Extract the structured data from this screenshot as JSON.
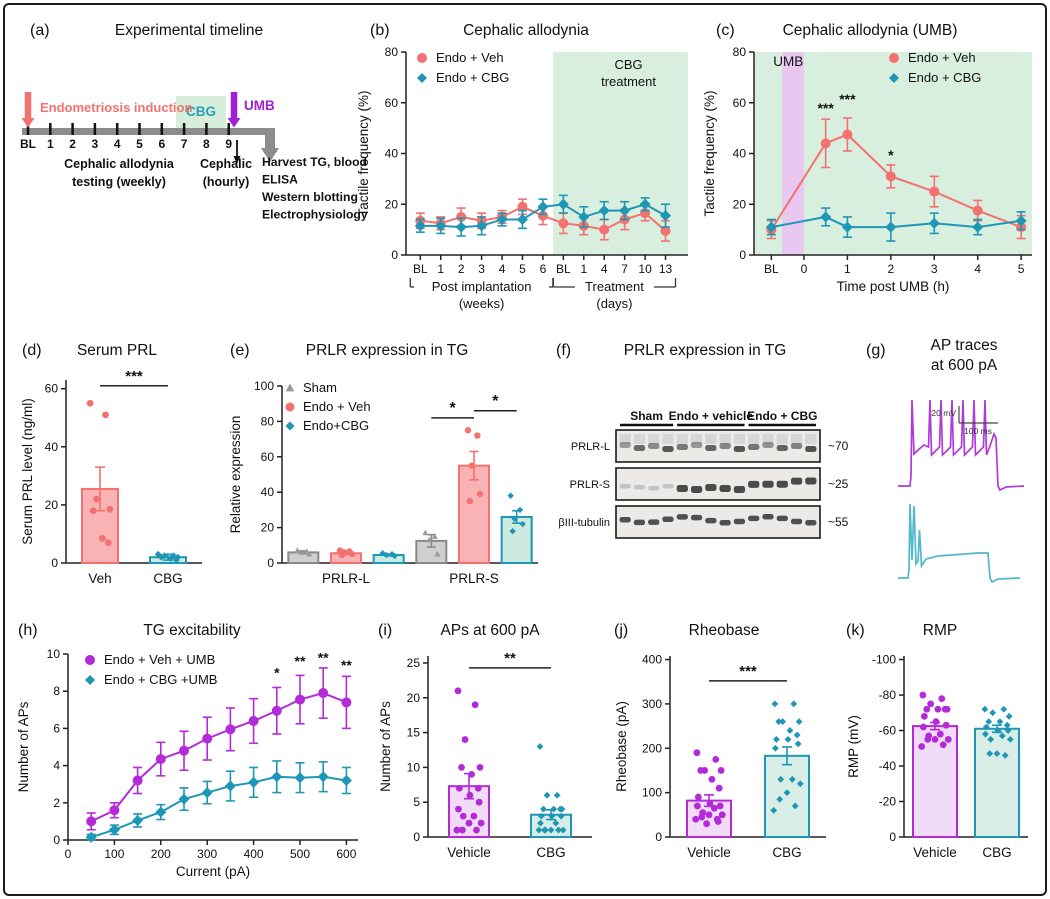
{
  "figure": {
    "border_color": "#1c1c1c",
    "background": "#ffffff"
  },
  "colors": {
    "salmon": "#F3716F",
    "teal": "#1E96B5",
    "magenta": "#B32BD9",
    "salmon_fill": "#F9B3B5",
    "teal_fill_light": "#CDEAE0",
    "magenta_fill": "#F2DBF8",
    "teal_fill": "#D8EDE5",
    "gray_marker": "#9A9A9A",
    "gray_fill": "#CFCFCF",
    "gray_stroke": "#8A8A8A",
    "green_shade": "#D8EEDE",
    "purple_band": "#E9C7F1"
  },
  "panels": {
    "a": {
      "label": "(a)",
      "title": "Experimental timeline",
      "timeline": {
        "induction": "Endometriosis induction",
        "cbg": "CBG",
        "umb": "UMB",
        "ticks": [
          "BL",
          "1",
          "2",
          "3",
          "4",
          "5",
          "6",
          "7",
          "8",
          "9"
        ],
        "weekly_note": [
          "Cephalic allodynia",
          "testing (weekly)"
        ],
        "cephalic_note": [
          "Cephalic",
          "(hourly)"
        ],
        "harvest_note": [
          "Harvest TG, blood",
          "ELISA",
          "Western blotting",
          "Electrophysiology"
        ],
        "colors": {
          "induction": "#F4726E",
          "cbg_box": "#D8EEDD",
          "cbg_text": "#2AA0B5",
          "umb": "#A21FD6",
          "bar": "#8C8C8C"
        }
      }
    },
    "b": {
      "label": "(b)",
      "title": "Cephalic allodynia"
    },
    "c": {
      "label": "(c)",
      "title": "Cephalic allodynia (UMB)"
    },
    "d": {
      "label": "(d)",
      "title": "Serum PRL"
    },
    "e": {
      "label": "(e)",
      "title": "PRLR expression in TG"
    },
    "f": {
      "label": "(f)",
      "title": "PRLR expression in TG",
      "blot": {
        "groups": [
          "Sham",
          "Endo + vehicle",
          "Endo + CBG"
        ],
        "rows": [
          {
            "name": "PRLR-L",
            "mw": "~70"
          },
          {
            "name": "PRLR-S",
            "mw": "~25"
          },
          {
            "name": "βIII-tubulin",
            "mw": "~55"
          }
        ]
      }
    },
    "g": {
      "label": "(g)",
      "title": "AP traces\nat 600 pA",
      "traces": {
        "scale_v": "20 mV",
        "scale_h": "100 ms",
        "colors": [
          "#AF3BD9",
          "#4FB9CB"
        ]
      }
    },
    "h": {
      "label": "(h)",
      "title": "TG excitability"
    },
    "i": {
      "label": "(i)",
      "title": "APs at 600 pA"
    },
    "j": {
      "label": "(j)",
      "title": "Rheobase"
    },
    "k": {
      "label": "(k)",
      "title": "RMP"
    }
  },
  "chart_data": [
    {
      "panel": "b",
      "type": "line",
      "title": "Cephalic allodynia",
      "ylabel": "Tactile frequency (%)",
      "ylim": [
        0,
        80
      ],
      "yticks": [
        0,
        20,
        40,
        60,
        80
      ],
      "x_categories": [
        "BL",
        "1",
        "2",
        "3",
        "4",
        "5",
        "6",
        "BL",
        "1",
        "4",
        "7",
        "10",
        "13"
      ],
      "shade": {
        "from": 6.5,
        "color": "#D8EEDE",
        "label": "CBG\ntreatment"
      },
      "brackets": [
        {
          "from": 0,
          "to": 6,
          "line1": "Post implantation",
          "line2": "(weeks)"
        },
        {
          "from": 7,
          "to": 12,
          "line1": "Treatment",
          "line2": "(days)"
        }
      ],
      "series": [
        {
          "name": "Endo + Veh",
          "marker": "circle",
          "color": "#F3716F",
          "values": [
            13.5,
            12.5,
            15,
            13.5,
            15,
            19,
            15.5,
            12.5,
            11.5,
            10,
            14,
            16.5,
            9.5
          ],
          "errors": [
            3,
            2.5,
            3.5,
            3,
            2.5,
            3,
            3.5,
            4,
            3.5,
            4,
            4,
            3,
            4
          ]
        },
        {
          "name": "Endo + CBG",
          "marker": "diamond",
          "color": "#1E96B5",
          "values": [
            11.5,
            11.5,
            11,
            11.5,
            14,
            14,
            19,
            20,
            15,
            17.5,
            17.5,
            20,
            15.5
          ],
          "errors": [
            2.5,
            3,
            3.5,
            3.5,
            2.5,
            3.5,
            3,
            3.5,
            4,
            3.5,
            3.5,
            2.5,
            4.5
          ]
        }
      ]
    },
    {
      "panel": "c",
      "type": "line",
      "title": "Cephalic allodynia (UMB)",
      "xlabel": "Time post UMB (h)",
      "ylabel": "Tactile frequency (%)",
      "ylim": [
        0,
        80
      ],
      "yticks": [
        0,
        20,
        40,
        60,
        80
      ],
      "xlim": [
        -1.15,
        5.25
      ],
      "x": [
        -0.75,
        0.5,
        1,
        2,
        3,
        4,
        5
      ],
      "xticks": [
        {
          "v": -0.75,
          "label": "BL"
        },
        {
          "v": 0,
          "label": "0"
        },
        {
          "v": 1,
          "label": "1"
        },
        {
          "v": 2,
          "label": "2"
        },
        {
          "v": 3,
          "label": "3"
        },
        {
          "v": 4,
          "label": "4"
        },
        {
          "v": 5,
          "label": "5"
        }
      ],
      "bg": "#D8EEDE",
      "band": {
        "x1": -0.5,
        "x2": 0,
        "color": "#E9C7F1",
        "label": "UMB"
      },
      "stars": [
        {
          "x": 0.5,
          "y": 56,
          "t": "***"
        },
        {
          "x": 1,
          "y": 59.5,
          "t": "***"
        },
        {
          "x": 2,
          "y": 37.5,
          "t": "*"
        }
      ],
      "series": [
        {
          "name": "Endo + Veh",
          "marker": "circle",
          "color": "#F3716F",
          "values": [
            10,
            44,
            47.5,
            31,
            25,
            17.5,
            11
          ],
          "errors": [
            3.5,
            9.5,
            6.5,
            4.5,
            6,
            4,
            4.5
          ]
        },
        {
          "name": "Endo + CBG",
          "marker": "diamond",
          "color": "#1E96B5",
          "values": [
            11,
            15,
            11,
            11,
            12.5,
            11,
            13.5
          ],
          "errors": [
            3,
            3.5,
            4,
            5.5,
            4,
            3,
            3.5
          ]
        }
      ]
    },
    {
      "panel": "d",
      "type": "bar",
      "title": "Serum PRL",
      "ylabel": "Serum PRL level (ng/ml)",
      "ylim": [
        0,
        63
      ],
      "yticks": [
        0,
        20,
        40,
        60
      ],
      "sig": {
        "i1": 0,
        "i2": 1,
        "y": 61,
        "label": "***"
      },
      "bars": [
        {
          "label": "Veh",
          "value": 25.5,
          "err": 7.5,
          "fill": "#F9B3B5",
          "stroke": "#F3716F",
          "marker": "circle",
          "pts": [
            55,
            51,
            22,
            18.5,
            18,
            8.5,
            7
          ]
        },
        {
          "label": "CBG",
          "value": 2,
          "err": 1,
          "fill": "#CDEAE0",
          "stroke": "#1E96B5",
          "marker": "diamond",
          "pts": [
            3,
            2.5,
            2.5,
            2,
            2,
            1.5,
            1
          ]
        }
      ]
    },
    {
      "panel": "e",
      "type": "groupbar",
      "title": "PRLR expression in TG",
      "ylabel": "Relative expression",
      "ylim": [
        0,
        100
      ],
      "yticks": [
        0,
        20,
        40,
        60,
        80,
        100
      ],
      "series": [
        {
          "name": "Sham",
          "marker": "triangle",
          "color": "#9A9A9A",
          "fill": "#CFCFCF",
          "stroke": "#8A8A8A"
        },
        {
          "name": "Endo + Veh",
          "marker": "circle",
          "color": "#F3716F",
          "fill": "#F9B3B5",
          "stroke": "#F3716F"
        },
        {
          "name": "Endo+CBG",
          "marker": "diamond",
          "color": "#1E96B5",
          "fill": "#CDEAE0",
          "stroke": "#1E96B5"
        }
      ],
      "groups": [
        {
          "label": "PRLR-L",
          "values": [
            6,
            5.5,
            4.5
          ],
          "errors": [
            0.8,
            0.8,
            0.5
          ],
          "pts": [
            [
              7,
              6.5,
              6,
              5
            ],
            [
              7,
              6.5,
              6,
              5,
              4.5
            ],
            [
              5.5,
              5,
              4.5,
              4
            ]
          ]
        },
        {
          "label": "PRLR-S",
          "values": [
            12.5,
            55,
            26
          ],
          "errors": [
            3.5,
            8,
            3.5
          ],
          "pts": [
            [
              17,
              15,
              13,
              5
            ],
            [
              75,
              72,
              55,
              39,
              35
            ],
            [
              38,
              30,
              25,
              22,
              18
            ]
          ]
        }
      ],
      "sigs": [
        {
          "g": 1,
          "s1": 0,
          "s2": 1,
          "y": 82,
          "label": "*"
        },
        {
          "g": 1,
          "s1": 1,
          "s2": 2,
          "y": 86,
          "label": "*"
        }
      ]
    },
    {
      "panel": "h",
      "type": "line",
      "title": "TG excitability",
      "xlabel": "Current (pA)",
      "ylabel": "Number of APs",
      "ylim": [
        0,
        10
      ],
      "yticks": [
        0,
        2,
        4,
        6,
        8,
        10
      ],
      "xlim": [
        0,
        625
      ],
      "x": [
        50,
        100,
        150,
        200,
        250,
        300,
        350,
        400,
        450,
        500,
        550,
        600
      ],
      "xticks": [
        {
          "v": 0,
          "label": "0"
        },
        {
          "v": 100,
          "label": "100"
        },
        {
          "v": 200,
          "label": "200"
        },
        {
          "v": 300,
          "label": "300"
        },
        {
          "v": 400,
          "label": "400"
        },
        {
          "v": 500,
          "label": "500"
        },
        {
          "v": 600,
          "label": "600"
        }
      ],
      "stars": [
        {
          "x": 450,
          "y": 8.75,
          "t": "*"
        },
        {
          "x": 500,
          "y": 9.35,
          "t": "**"
        },
        {
          "x": 550,
          "y": 9.55,
          "t": "**"
        },
        {
          "x": 600,
          "y": 9.15,
          "t": "**"
        }
      ],
      "series": [
        {
          "name": "Endo + Veh + UMB",
          "marker": "circle",
          "color": "#B32BD9",
          "values": [
            1,
            1.6,
            3.2,
            4.35,
            4.8,
            5.45,
            5.95,
            6.4,
            6.95,
            7.55,
            7.9,
            7.4
          ],
          "errors": [
            0.45,
            0.4,
            0.7,
            0.9,
            1.05,
            1.15,
            1.15,
            1.2,
            1.25,
            1.3,
            1.35,
            1.4
          ]
        },
        {
          "name": "Endo + CBG +UMB",
          "marker": "diamond",
          "color": "#1E96B5",
          "values": [
            0.15,
            0.55,
            1.05,
            1.5,
            2.2,
            2.55,
            2.9,
            3.1,
            3.4,
            3.35,
            3.4,
            3.2
          ],
          "errors": [
            0.15,
            0.25,
            0.35,
            0.4,
            0.6,
            0.6,
            0.8,
            0.8,
            0.85,
            0.8,
            0.8,
            0.7
          ]
        }
      ]
    },
    {
      "panel": "i",
      "type": "bar",
      "title": "APs at 600 pA",
      "ylabel": "Number of APs",
      "ylim": [
        0,
        26
      ],
      "yticks": [
        0,
        5,
        10,
        15,
        20,
        25
      ],
      "sig": {
        "i1": 0,
        "i2": 1,
        "y": 24.3,
        "label": "**"
      },
      "bars": [
        {
          "label": "Vehicle",
          "value": 7.3,
          "err": 1.8,
          "fill": "#F2DBF8",
          "stroke": "#B32BD9",
          "marker": "circle",
          "pts": [
            21,
            19,
            14,
            10,
            10,
            9,
            7,
            7,
            6,
            5,
            4,
            3,
            3,
            2,
            2,
            1,
            1,
            1
          ]
        },
        {
          "label": "CBG",
          "value": 3.2,
          "err": 0.7,
          "fill": "#D8EDE5",
          "stroke": "#1E96B5",
          "marker": "diamond",
          "pts": [
            13,
            6,
            6,
            4,
            4,
            4,
            4,
            3,
            3,
            3,
            2,
            2,
            1,
            1,
            1,
            1,
            1,
            1
          ]
        }
      ]
    },
    {
      "panel": "j",
      "type": "bar",
      "title": "Rheobase",
      "ylabel": "Rheobase (pA)",
      "ylim": [
        0,
        408
      ],
      "yticks": [
        0,
        100,
        200,
        300,
        400
      ],
      "sig": {
        "i1": 0,
        "i2": 1,
        "y": 352,
        "label": "***"
      },
      "bars": [
        {
          "label": "Vehicle",
          "value": 82,
          "err": 13,
          "fill": "#F2DBF8",
          "stroke": "#B32BD9",
          "marker": "circle",
          "pts": [
            190,
            175,
            150,
            150,
            150,
            130,
            110,
            90,
            75,
            70,
            70,
            65,
            55,
            50,
            50,
            45,
            40,
            40,
            35,
            30
          ]
        },
        {
          "label": "CBG",
          "value": 183,
          "err": 20,
          "fill": "#D8EDE5",
          "stroke": "#1E96B5",
          "marker": "diamond",
          "pts": [
            300,
            300,
            260,
            260,
            260,
            240,
            230,
            220,
            220,
            210,
            200,
            130,
            130,
            120,
            100,
            85,
            70,
            60
          ]
        }
      ]
    },
    {
      "panel": "k",
      "type": "bar",
      "title": "RMP",
      "inverted": true,
      "ylabel": "RMP (mV)",
      "ylim": [
        0,
        -102
      ],
      "yticks": [
        -100,
        -80,
        -60,
        -40,
        -20,
        0
      ],
      "bars": [
        {
          "label": "Vehicle",
          "value": -62.5,
          "err": 2,
          "fill": "#F2DBF8",
          "stroke": "#B32BD9",
          "marker": "circle",
          "pts": [
            -80,
            -78,
            -75,
            -72,
            -72,
            -72,
            -72,
            -68,
            -65,
            -63,
            -62,
            -58,
            -57,
            -55,
            -55,
            -55,
            -52,
            -51
          ]
        },
        {
          "label": "CBG",
          "value": -61,
          "err": 2,
          "fill": "#D8EDE5",
          "stroke": "#1E96B5",
          "marker": "diamond",
          "pts": [
            -72,
            -72,
            -70,
            -68,
            -65,
            -65,
            -63,
            -62,
            -60,
            -60,
            -58,
            -57,
            -55,
            -55,
            -47,
            -47,
            -46
          ]
        }
      ]
    }
  ]
}
